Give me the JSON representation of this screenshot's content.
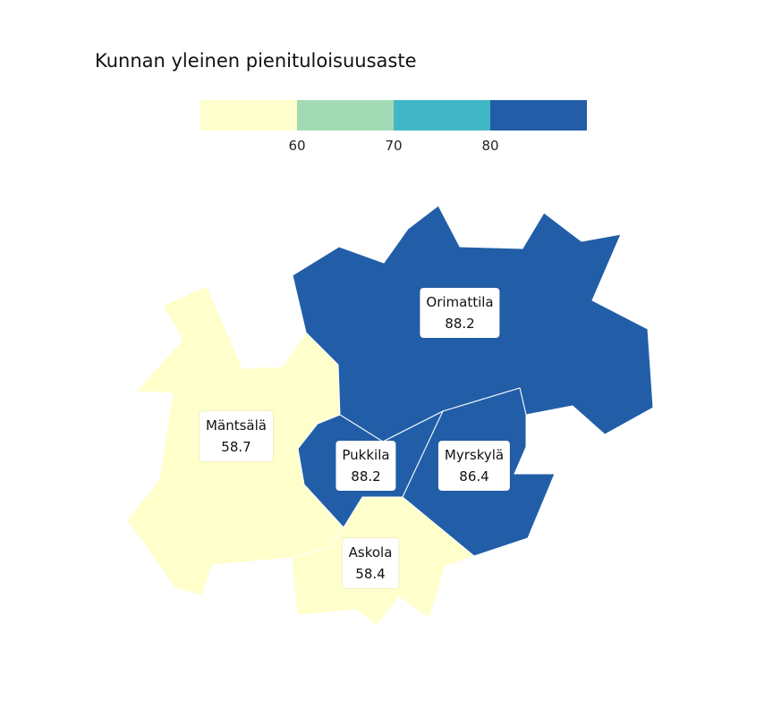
{
  "title": "Kunnan yleinen pienituloisuusaste",
  "legend": {
    "bins": [
      {
        "color": "#ffffcc"
      },
      {
        "color": "#a1dab4"
      },
      {
        "color": "#41b6c4"
      },
      {
        "color": "#225ea8"
      }
    ],
    "ticks": [
      "60",
      "70",
      "80"
    ]
  },
  "regions": [
    {
      "id": "mantsala",
      "name": "Mäntsälä",
      "value": "58.7",
      "color": "#ffffcc"
    },
    {
      "id": "orimattila",
      "name": "Orimattila",
      "value": "88.2",
      "color": "#225ea8"
    },
    {
      "id": "pukkila",
      "name": "Pukkila",
      "value": "88.2",
      "color": "#225ea8"
    },
    {
      "id": "myrskyla",
      "name": "Myrskylä",
      "value": "86.4",
      "color": "#225ea8"
    },
    {
      "id": "askola",
      "name": "Askola",
      "value": "58.4",
      "color": "#ffffcc"
    }
  ]
}
